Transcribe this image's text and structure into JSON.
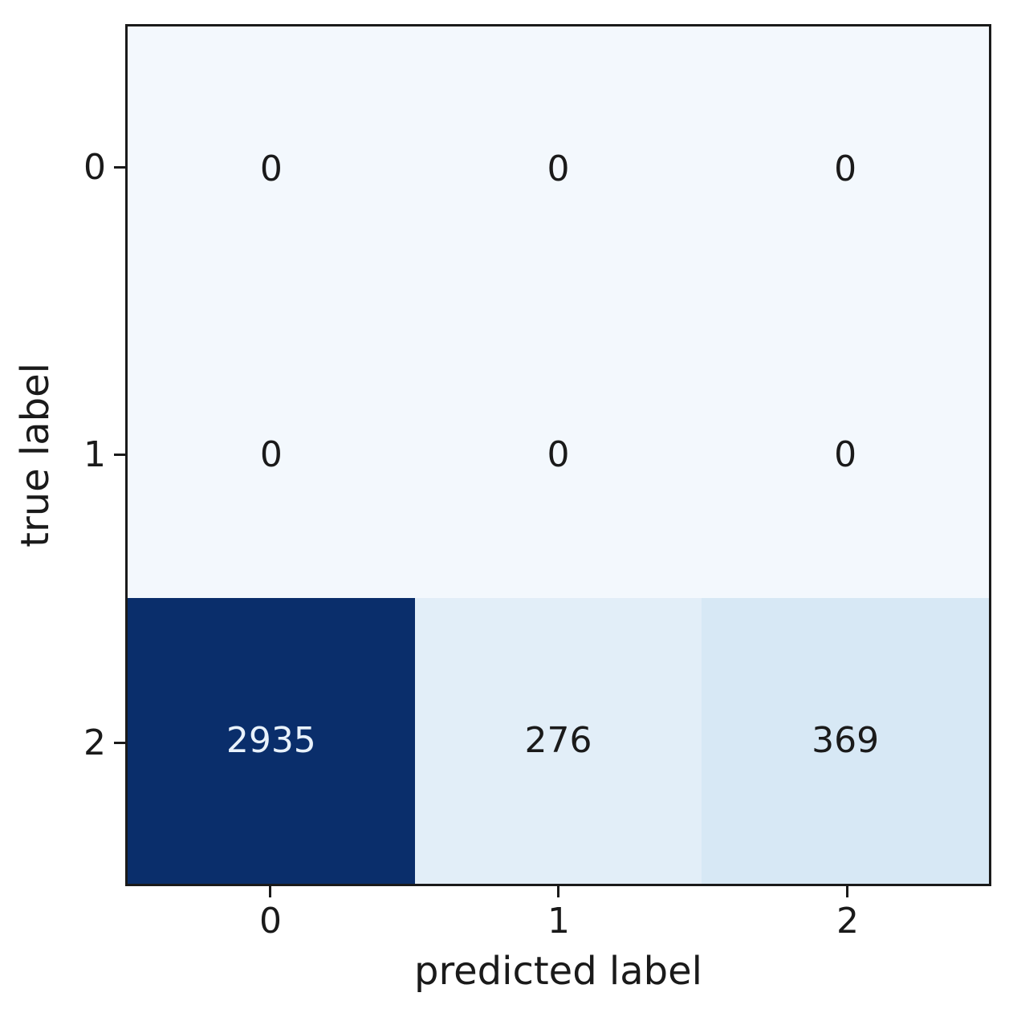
{
  "chart_data": {
    "type": "heatmap",
    "subtype": "confusion-matrix",
    "xlabel": "predicted label",
    "ylabel": "true label",
    "x_tick_labels": [
      "0",
      "1",
      "2"
    ],
    "y_tick_labels": [
      "0",
      "1",
      "2"
    ],
    "matrix": [
      [
        0,
        0,
        0
      ],
      [
        0,
        0,
        0
      ],
      [
        2935,
        276,
        369
      ]
    ],
    "cell_text": [
      [
        "0",
        "0",
        "0"
      ],
      [
        "0",
        "0",
        "0"
      ],
      [
        "2935",
        "276",
        "369"
      ]
    ],
    "cell_colors": [
      [
        "#f3f8fd",
        "#f3f8fd",
        "#f3f8fd"
      ],
      [
        "#f3f8fd",
        "#f3f8fd",
        "#f3f8fd"
      ],
      [
        "#0a2e6b",
        "#e2eef8",
        "#d7e8f5"
      ]
    ],
    "cell_text_colors": [
      [
        "#1a1a1a",
        "#1a1a1a",
        "#1a1a1a"
      ],
      [
        "#1a1a1a",
        "#1a1a1a",
        "#1a1a1a"
      ],
      [
        "#e9f2fb",
        "#1a1a1a",
        "#1a1a1a"
      ]
    ],
    "colormap": "Blues",
    "value_range": [
      0,
      2935
    ],
    "layout": {
      "grid": false,
      "legend": false,
      "colorbar": false
    },
    "colors": {
      "background": "#ffffff",
      "spine": "#1a1a1a",
      "text": "#1a1a1a",
      "min_cell": "#f3f8fd",
      "max_cell": "#0a2e6b"
    }
  }
}
